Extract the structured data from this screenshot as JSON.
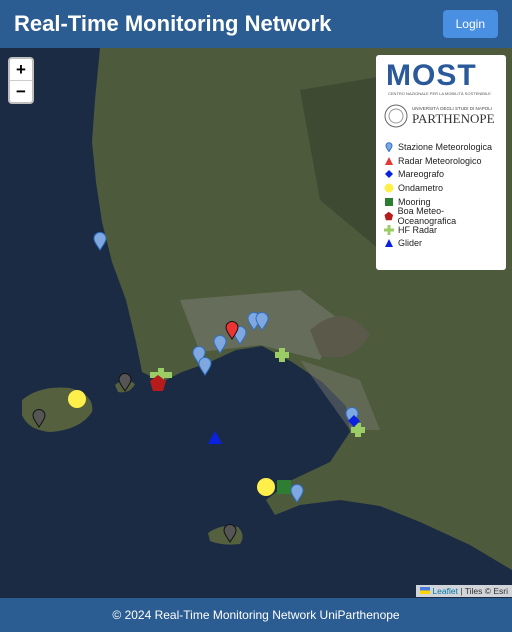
{
  "header": {
    "title": "Real-Time Monitoring Network",
    "login": "Login"
  },
  "zoom": {
    "in": "+",
    "out": "−"
  },
  "legend": {
    "logo_most": {
      "name": "MOST",
      "subtitle": "CENTRO NAZIONALE PER LA MOBILITÀ SOSTENIBILE"
    },
    "logo_university": {
      "line1": "UNIVERSITÀ DEGLI STUDI DI NAPOLI",
      "line2": "PARTHENOPE"
    },
    "items": [
      "Stazione Meteorologica",
      "Radar Meteorologico",
      "Mareografo",
      "Ondametro",
      "Mooring",
      "Boa Meteo-Oceanografica",
      "HF Radar",
      "Glider"
    ]
  },
  "attribution": {
    "link": "Leaflet",
    "text": "| Tiles © Esri"
  },
  "footer": {
    "text": "© 2024 Real-Time Monitoring Network UniParthenope"
  }
}
